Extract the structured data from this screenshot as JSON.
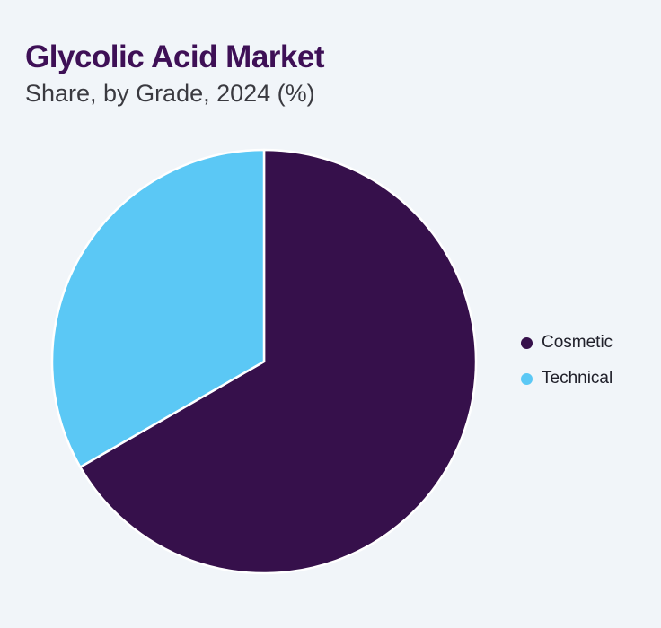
{
  "page": {
    "background": "#F1F5F9"
  },
  "styles": {
    "title_color": "#3E1056",
    "subtitle_color": "#3A3A40",
    "legend_text_color": "#20202A",
    "separator_color": "#FFFFFF"
  },
  "chart_data": {
    "type": "pie",
    "title": "Glycolic Acid Market",
    "subtitle": "Share, by Grade, 2024 (%)",
    "unit": "%",
    "start_angle_deg": 0,
    "direction": "clockwise",
    "legend_position": "right",
    "data_labels_visible": false,
    "slices": [
      {
        "label": "Cosmetic",
        "value": 66.7,
        "color": "#36104B"
      },
      {
        "label": "Technical",
        "value": 33.3,
        "color": "#5BC8F5"
      }
    ]
  }
}
